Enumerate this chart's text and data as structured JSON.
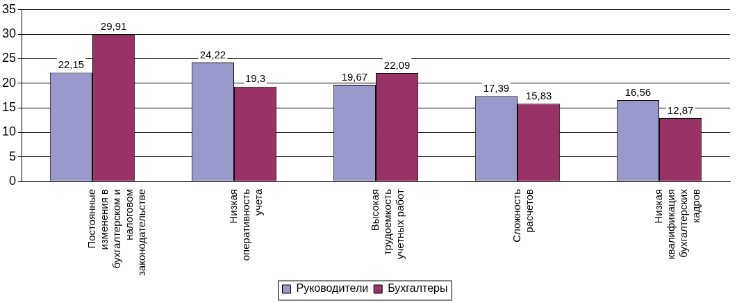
{
  "chart_data": {
    "type": "bar",
    "categories": [
      "Постоянные изменения в бухгалтерском и налоговом законодательстве",
      "Низкая оперативность учета",
      "Высокая трудоемкость учетных работ",
      "Сложность расчетов",
      "Низкая квалификация бухгалтерских кадров"
    ],
    "series": [
      {
        "name": "Руководители",
        "color": "#9999cc",
        "values": [
          22.15,
          24.22,
          19.67,
          17.39,
          16.56
        ],
        "value_labels": [
          "22,15",
          "24,22",
          "19,67",
          "17,39",
          "16,56"
        ]
      },
      {
        "name": "Бухгалтеры",
        "color": "#993366",
        "values": [
          29.91,
          19.3,
          22.09,
          15.83,
          12.87
        ],
        "value_labels": [
          "29,91",
          "19,3",
          "22,09",
          "15,83",
          "12,87"
        ]
      }
    ],
    "ylim": [
      0,
      35
    ],
    "yticks": [
      0,
      5,
      10,
      15,
      20,
      25,
      30,
      35
    ],
    "grid": "y",
    "legend": "bottom"
  }
}
